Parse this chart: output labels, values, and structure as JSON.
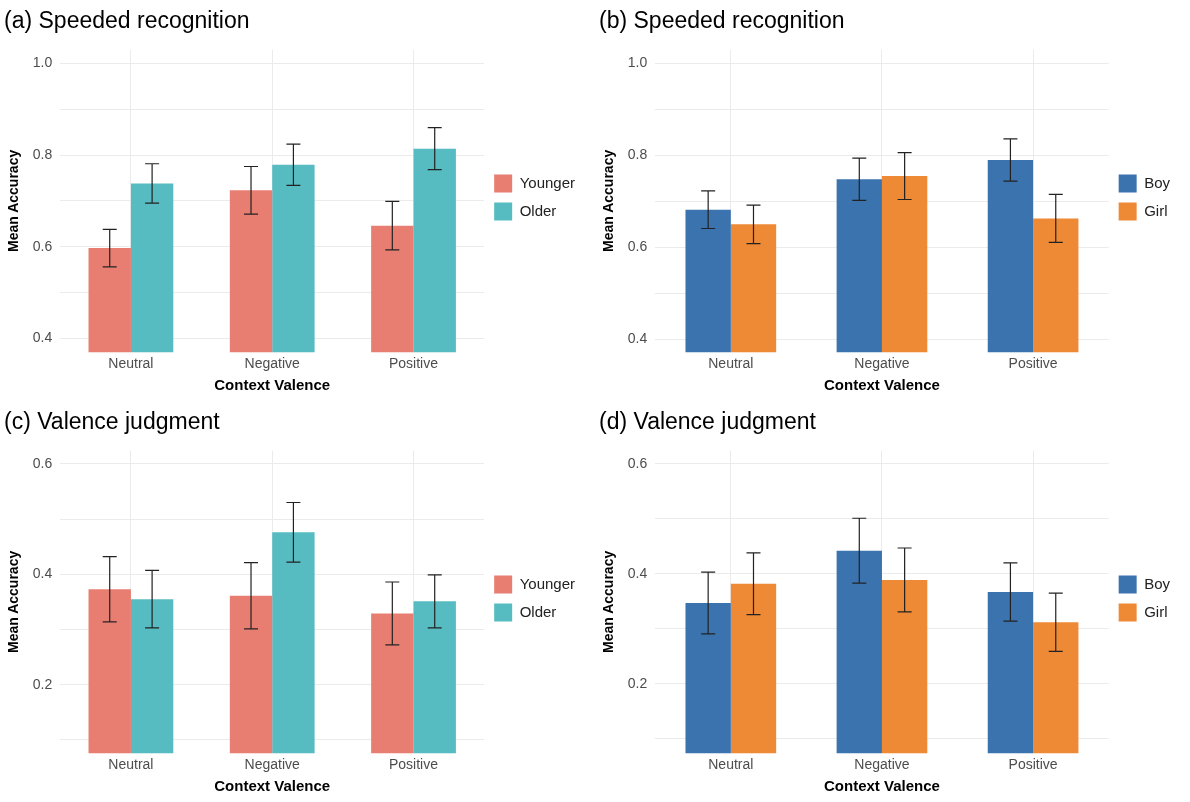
{
  "chart_data": [
    {
      "type": "bar",
      "title": "(a) Speeded recognition",
      "xlabel": "Context Valence",
      "ylabel": "Mean Accuracy",
      "categories": [
        "Neutral",
        "Negative",
        "Positive"
      ],
      "series": [
        {
          "name": "Younger",
          "color": "#e87d72",
          "values": [
            0.597,
            0.723,
            0.646
          ],
          "errors": [
            0.041,
            0.052,
            0.053
          ]
        },
        {
          "name": "Older",
          "color": "#56bcc2",
          "values": [
            0.738,
            0.779,
            0.814
          ],
          "errors": [
            0.043,
            0.045,
            0.046
          ]
        }
      ],
      "ylim": [
        0.37,
        1.03
      ],
      "yticks": [
        0.4,
        {
          "value": 0.5,
          "label": null
        },
        0.6,
        {
          "value": 0.7,
          "label": null
        },
        0.8,
        {
          "value": 0.9,
          "label": null
        },
        {
          "value": 1.0,
          "label": "1.0"
        }
      ],
      "grid": true,
      "legend": "right"
    },
    {
      "type": "bar",
      "title": "(b) Speeded recognition",
      "xlabel": "Context Valence",
      "ylabel": "Mean Accuracy",
      "categories": [
        "Neutral",
        "Negative",
        "Positive"
      ],
      "series": [
        {
          "name": "Boy",
          "color": "#3a73ae",
          "values": [
            0.682,
            0.748,
            0.79
          ],
          "errors": [
            0.041,
            0.046,
            0.046
          ]
        },
        {
          "name": "Girl",
          "color": "#ee8936",
          "values": [
            0.65,
            0.755,
            0.663
          ],
          "errors": [
            0.042,
            0.051,
            0.052
          ]
        }
      ],
      "ylim": [
        0.372,
        1.03
      ],
      "yticks": [
        0.4,
        {
          "value": 0.5,
          "label": null
        },
        0.6,
        {
          "value": 0.7,
          "label": null
        },
        0.8,
        {
          "value": 0.9,
          "label": null
        },
        {
          "value": 1.0,
          "label": "1.0"
        }
      ],
      "grid": true,
      "legend": "right"
    },
    {
      "type": "bar",
      "title": "(c) Valence judgment",
      "xlabel": "Context Valence",
      "ylabel": "Mean Accuracy",
      "categories": [
        "Neutral",
        "Negative",
        "Positive"
      ],
      "series": [
        {
          "name": "Younger",
          "color": "#e87d72",
          "values": [
            0.373,
            0.361,
            0.329
          ],
          "errors": [
            0.059,
            0.06,
            0.057
          ]
        },
        {
          "name": "Older",
          "color": "#56bcc2",
          "values": [
            0.355,
            0.476,
            0.351
          ],
          "errors": [
            0.052,
            0.054,
            0.048
          ]
        }
      ],
      "ylim": [
        0.076,
        0.624
      ],
      "yticks": [
        {
          "value": 0.1,
          "label": null
        },
        0.2,
        {
          "value": 0.3,
          "label": null
        },
        0.4,
        {
          "value": 0.5,
          "label": null
        },
        0.6
      ],
      "grid": true,
      "legend": "right"
    },
    {
      "type": "bar",
      "title": "(d) Valence judgment",
      "xlabel": "Context Valence",
      "ylabel": "Mean Accuracy",
      "categories": [
        "Neutral",
        "Negative",
        "Positive"
      ],
      "series": [
        {
          "name": "Boy",
          "color": "#3a73ae",
          "values": [
            0.347,
            0.442,
            0.367
          ],
          "errors": [
            0.056,
            0.059,
            0.053
          ]
        },
        {
          "name": "Girl",
          "color": "#ee8936",
          "values": [
            0.382,
            0.389,
            0.312
          ],
          "errors": [
            0.056,
            0.058,
            0.053
          ]
        }
      ],
      "ylim": [
        0.074,
        0.624
      ],
      "yticks": [
        {
          "value": 0.1,
          "label": null
        },
        0.2,
        {
          "value": 0.3,
          "label": null
        },
        0.4,
        {
          "value": 0.5,
          "label": null
        },
        0.6
      ],
      "grid": true,
      "legend": "right"
    }
  ]
}
